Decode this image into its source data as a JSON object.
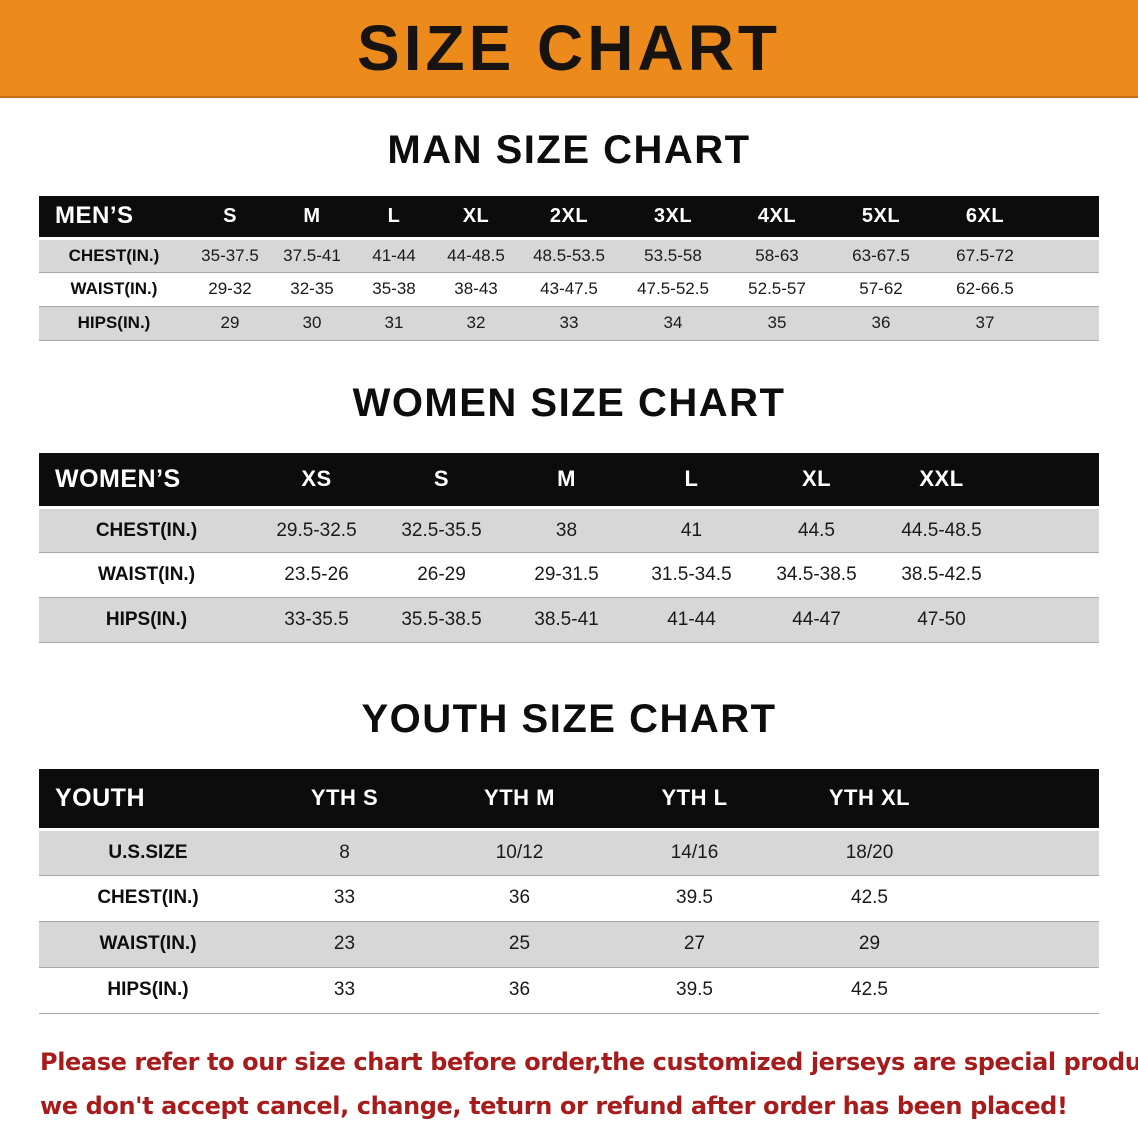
{
  "banner": {
    "title": "SIZE CHART"
  },
  "colors": {
    "banner_bg": "#EC8B1C",
    "banner_edge": "#C96F10",
    "header_bg": "#0C0C0C",
    "stripe": "#D7D7D7",
    "note_red": "#A61B1B"
  },
  "chart_data": [
    {
      "type": "table",
      "title": "MAN SIZE CHART",
      "header": [
        "MEN’S",
        "S",
        "M",
        "L",
        "XL",
        "2XL",
        "3XL",
        "4XL",
        "5XL",
        "6XL"
      ],
      "rows": [
        [
          "CHEST(IN.)",
          "35-37.5",
          "37.5-41",
          "41-44",
          "44-48.5",
          "48.5-53.5",
          "53.5-58",
          "58-63",
          "63-67.5",
          "67.5-72"
        ],
        [
          "WAIST(IN.)",
          "29-32",
          "32-35",
          "35-38",
          "38-43",
          "43-47.5",
          "47.5-52.5",
          "52.5-57",
          "57-62",
          "62-66.5"
        ],
        [
          "HIPS(IN.)",
          "29",
          "30",
          "31",
          "32",
          "33",
          "34",
          "35",
          "36",
          "37"
        ]
      ]
    },
    {
      "type": "table",
      "title": "WOMEN SIZE CHART",
      "header": [
        "WOMEN’S",
        "XS",
        "S",
        "M",
        "L",
        "XL",
        "XXL"
      ],
      "rows": [
        [
          "CHEST(IN.)",
          "29.5-32.5",
          "32.5-35.5",
          "38",
          "41",
          "44.5",
          "44.5-48.5"
        ],
        [
          "WAIST(IN.)",
          "23.5-26",
          "26-29",
          "29-31.5",
          "31.5-34.5",
          "34.5-38.5",
          "38.5-42.5"
        ],
        [
          "HIPS(IN.)",
          "33-35.5",
          "35.5-38.5",
          "38.5-41",
          "41-44",
          "44-47",
          "47-50"
        ]
      ]
    },
    {
      "type": "table",
      "title": "YOUTH SIZE CHART",
      "header": [
        "YOUTH",
        "YTH S",
        "YTH M",
        "YTH L",
        "YTH XL"
      ],
      "rows": [
        [
          "U.S.SIZE",
          "8",
          "10/12",
          "14/16",
          "18/20"
        ],
        [
          "CHEST(IN.)",
          "33",
          "36",
          "39.5",
          "42.5"
        ],
        [
          "WAIST(IN.)",
          "23",
          "25",
          "27",
          "29"
        ],
        [
          "HIPS(IN.)",
          "33",
          "36",
          "39.5",
          "42.5"
        ]
      ]
    }
  ],
  "note": {
    "line1": "Please refer to our size chart before order,the customized jerseys are special products,",
    "line2": "we don't accept cancel, change, teturn or refund after order has been placed!"
  }
}
